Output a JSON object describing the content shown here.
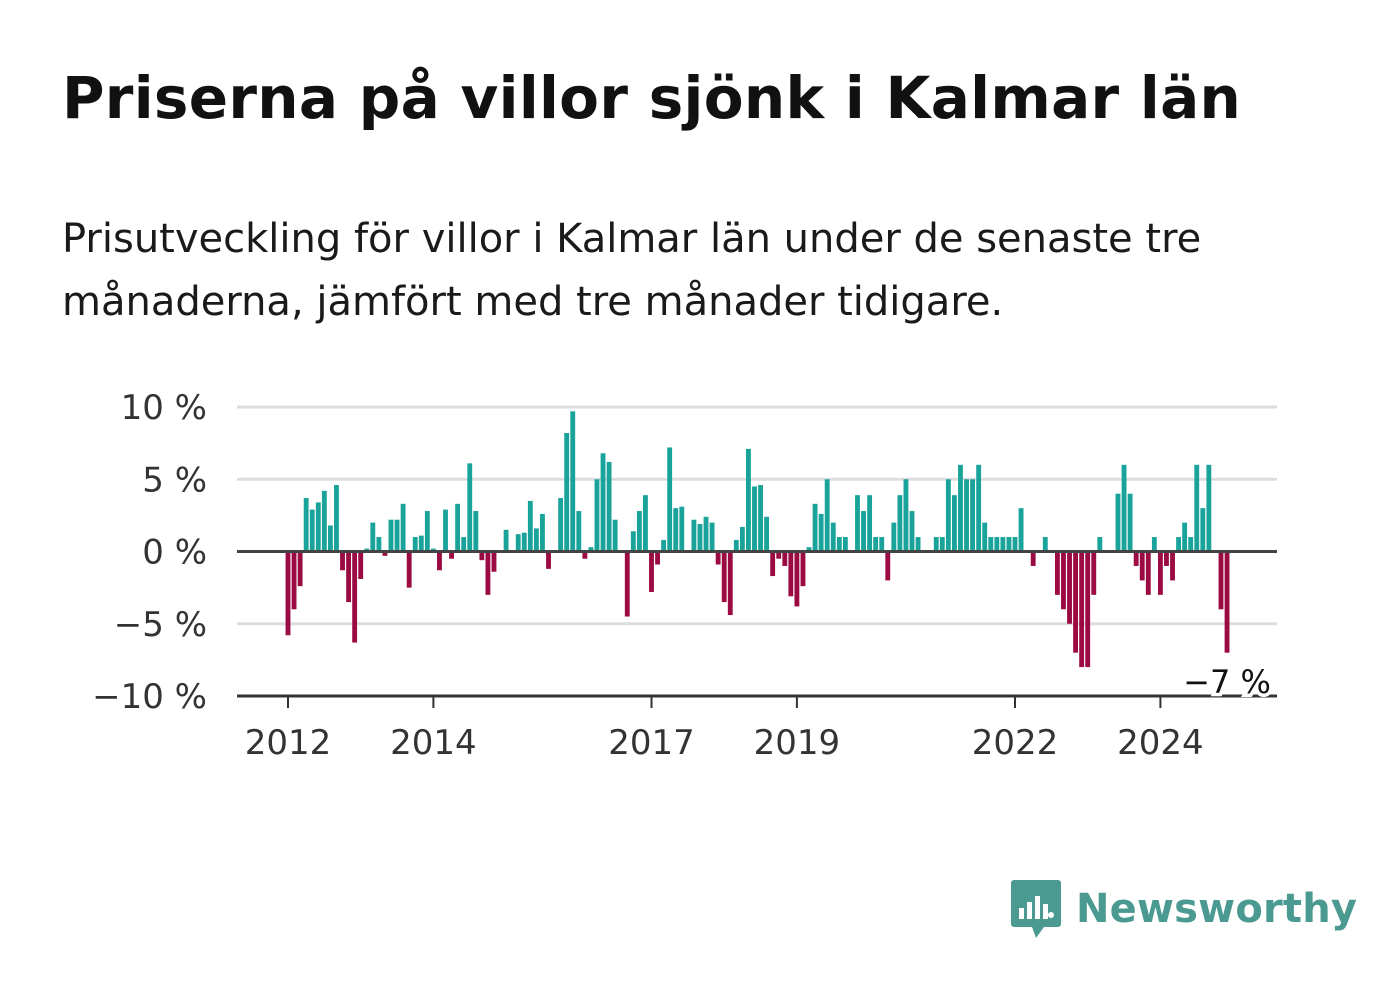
{
  "title": "Priserna på villor sjönk i Kalmar län",
  "subtitle": "Prisutveckling för villor i Kalmar län under de senaste tre månaderna, jämfört med tre månader tidigare.",
  "brand": {
    "name": "Newsworthy",
    "icon": "newsworthy-logo-icon",
    "color": "#4b9a91"
  },
  "colors": {
    "positive": "#1aa39a",
    "negative": "#9b0a42",
    "grid": "#dddddd",
    "zero": "#444444"
  },
  "chart_data": {
    "type": "bar",
    "title": "Priserna på villor sjönk i Kalmar län",
    "ylabel": "",
    "xlabel": "",
    "ylim": [
      -10,
      10
    ],
    "yticks": [
      10,
      5,
      0,
      -5,
      -10
    ],
    "ytick_labels": [
      "10 %",
      "5 %",
      "0 %",
      "−5 %",
      "−10 %"
    ],
    "xticks": [
      {
        "value": 2012,
        "label": "2012"
      },
      {
        "value": 2014,
        "label": "2014"
      },
      {
        "value": 2017,
        "label": "2017"
      },
      {
        "value": 2019,
        "label": "2019"
      },
      {
        "value": 2022,
        "label": "2022"
      },
      {
        "value": 2024,
        "label": "2024"
      }
    ],
    "start": "2012-01",
    "frequency": "monthly",
    "grid": true,
    "last_value_label": "−7 %",
    "values": [
      -5.8,
      -4.0,
      -2.4,
      3.7,
      2.9,
      3.4,
      4.2,
      1.8,
      4.6,
      -1.3,
      -3.5,
      -6.3,
      -1.9,
      0.2,
      2.0,
      1.0,
      -0.3,
      2.2,
      2.2,
      3.3,
      -2.5,
      1.0,
      1.1,
      2.8,
      0.2,
      -1.3,
      2.9,
      -0.5,
      3.3,
      1.0,
      6.1,
      2.8,
      -0.6,
      -3.0,
      -1.4,
      0.1,
      1.5,
      0.1,
      1.2,
      1.3,
      3.5,
      1.6,
      2.6,
      -1.2,
      0.1,
      3.7,
      8.2,
      9.7,
      2.8,
      -0.5,
      0.3,
      5.0,
      6.8,
      6.2,
      2.2,
      0.1,
      -4.5,
      1.4,
      2.8,
      3.9,
      -2.8,
      -0.9,
      0.8,
      7.2,
      3.0,
      3.1,
      0.1,
      2.2,
      1.9,
      2.4,
      2.0,
      -0.9,
      -3.5,
      -4.4,
      0.8,
      1.7,
      7.1,
      4.5,
      4.6,
      2.4,
      -1.7,
      -0.5,
      -1.0,
      -3.1,
      -3.8,
      -2.4,
      0.3,
      3.3,
      2.6,
      5.0,
      2.0,
      1.0,
      1.0,
      0.1,
      3.9,
      2.8,
      3.9,
      1.0,
      1.0,
      -2.0,
      2.0,
      3.9,
      5.0,
      2.8,
      1.0,
      0.1,
      0.1,
      1.0,
      1.0,
      5.0,
      3.9,
      6.0,
      5.0,
      5.0,
      6.0,
      2.0,
      1.0,
      1.0,
      1.0,
      1.0,
      1.0,
      3.0,
      0.1,
      -1.0,
      0.1,
      1.0,
      0.1,
      -3.0,
      -4.0,
      -5.0,
      -7.0,
      -8.0,
      -8.0,
      -3.0,
      1.0,
      0.1,
      0.1,
      4.0,
      6.0,
      4.0,
      -1.0,
      -2.0,
      -3.0,
      1.0,
      -3.0,
      -1.0,
      -2.0,
      1.0,
      2.0,
      1.0,
      6.0,
      3.0,
      6.0,
      0.1,
      -4.0,
      -7.0
    ]
  }
}
